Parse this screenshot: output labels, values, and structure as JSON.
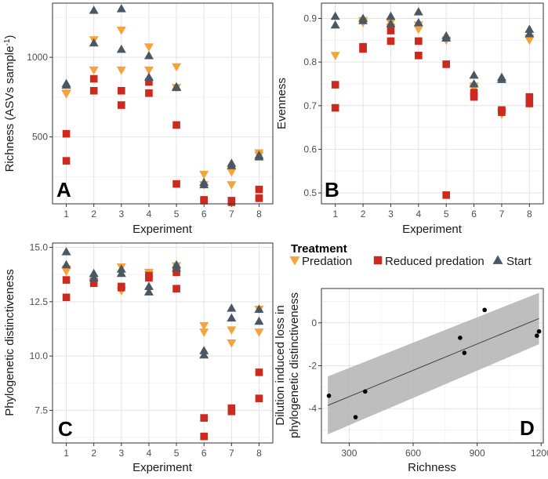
{
  "colors": {
    "predation": "#F5A33A",
    "reduced_predation": "#CC2A1E",
    "start": "#4B5863",
    "ci_band": "#B3B3B3",
    "fit_line": "#404040",
    "point_d": "#000000"
  },
  "legend": {
    "title": "Treatment",
    "items": [
      {
        "key": "predation",
        "label": "Predation",
        "shape": "triangle-down"
      },
      {
        "key": "reduced_predation",
        "label": "Reduced predation",
        "shape": "square"
      },
      {
        "key": "start",
        "label": "Start",
        "shape": "triangle-up"
      }
    ]
  },
  "chart_data": [
    {
      "panel": "A",
      "type": "scatter",
      "xlabel": "Experiment",
      "ylabel": "Richness (ASVs sample",
      "ylabel_superscript": "-1",
      "ylabel_close": ")",
      "xlim": [
        0.5,
        8.5
      ],
      "ylim": [
        80,
        1340
      ],
      "x_ticks": [
        1,
        2,
        3,
        4,
        5,
        6,
        7,
        8
      ],
      "y_ticks": [
        500,
        1000
      ],
      "series": [
        {
          "name": "Predation",
          "key": "predation",
          "points": [
            [
              1,
              775
            ],
            [
              1,
              770
            ],
            [
              2,
              1110
            ],
            [
              2,
              920
            ],
            [
              3,
              1170
            ],
            [
              3,
              920
            ],
            [
              4,
              1065
            ],
            [
              4,
              920
            ],
            [
              5,
              940
            ],
            [
              5,
              810
            ],
            [
              6,
              265
            ],
            [
              6,
              200
            ],
            [
              7,
              280
            ],
            [
              7,
              200
            ],
            [
              8,
              400
            ],
            [
              8,
              385
            ]
          ]
        },
        {
          "name": "Reduced predation",
          "key": "reduced_predation",
          "points": [
            [
              1,
              520
            ],
            [
              1,
              350
            ],
            [
              2,
              865
            ],
            [
              2,
              790
            ],
            [
              3,
              790
            ],
            [
              3,
              700
            ],
            [
              4,
              845
            ],
            [
              4,
              775
            ],
            [
              5,
              575
            ],
            [
              5,
              205
            ],
            [
              6,
              105
            ],
            [
              6,
              100
            ],
            [
              7,
              100
            ],
            [
              7,
              90
            ],
            [
              8,
              170
            ],
            [
              8,
              115
            ]
          ]
        },
        {
          "name": "Start",
          "key": "start",
          "points": [
            [
              1,
              835
            ],
            [
              1,
              825
            ],
            [
              2,
              1295
            ],
            [
              2,
              1090
            ],
            [
              3,
              1305
            ],
            [
              3,
              1050
            ],
            [
              4,
              1010
            ],
            [
              4,
              875
            ],
            [
              5,
              815
            ],
            [
              5,
              810
            ],
            [
              6,
              215
            ],
            [
              6,
              200
            ],
            [
              7,
              335
            ],
            [
              7,
              320
            ],
            [
              8,
              385
            ],
            [
              8,
              375
            ]
          ]
        }
      ]
    },
    {
      "panel": "B",
      "type": "scatter",
      "xlabel": "Experiment",
      "ylabel": "Evenness",
      "xlim": [
        0.5,
        8.5
      ],
      "ylim": [
        0.475,
        0.935
      ],
      "x_ticks": [
        1,
        2,
        3,
        4,
        5,
        6,
        7,
        8
      ],
      "y_ticks": [
        0.5,
        0.6,
        0.7,
        0.8,
        0.9
      ],
      "series": [
        {
          "name": "Predation",
          "key": "predation",
          "points": [
            [
              1,
              0.815
            ],
            [
              2,
              0.895
            ],
            [
              2,
              0.89
            ],
            [
              3,
              0.89
            ],
            [
              3,
              0.88
            ],
            [
              4,
              0.885
            ],
            [
              4,
              0.875
            ],
            [
              5,
              0.85
            ],
            [
              6,
              0.745
            ],
            [
              6,
              0.74
            ],
            [
              7,
              0.685
            ],
            [
              7,
              0.68
            ],
            [
              8,
              0.855
            ],
            [
              8,
              0.85
            ]
          ]
        },
        {
          "name": "Reduced predation",
          "key": "reduced_predation",
          "points": [
            [
              1,
              0.748
            ],
            [
              1,
              0.695
            ],
            [
              2,
              0.835
            ],
            [
              2,
              0.83
            ],
            [
              3,
              0.872
            ],
            [
              3,
              0.848
            ],
            [
              4,
              0.848
            ],
            [
              4,
              0.815
            ],
            [
              5,
              0.795
            ],
            [
              5,
              0.495
            ],
            [
              6,
              0.73
            ],
            [
              6,
              0.72
            ],
            [
              7,
              0.69
            ],
            [
              7,
              0.685
            ],
            [
              8,
              0.72
            ],
            [
              8,
              0.705
            ]
          ]
        },
        {
          "name": "Start",
          "key": "start",
          "points": [
            [
              1,
              0.905
            ],
            [
              1,
              0.885
            ],
            [
              2,
              0.9
            ],
            [
              2,
              0.895
            ],
            [
              3,
              0.905
            ],
            [
              3,
              0.888
            ],
            [
              4,
              0.915
            ],
            [
              4,
              0.89
            ],
            [
              5,
              0.86
            ],
            [
              5,
              0.855
            ],
            [
              6,
              0.77
            ],
            [
              6,
              0.75
            ],
            [
              7,
              0.765
            ],
            [
              7,
              0.76
            ],
            [
              8,
              0.875
            ],
            [
              8,
              0.865
            ]
          ]
        }
      ]
    },
    {
      "panel": "C",
      "type": "scatter",
      "xlabel": "Experiment",
      "ylabel": "Phylogenetic distinctiveness",
      "xlim": [
        0.5,
        8.5
      ],
      "ylim": [
        6.0,
        15.2
      ],
      "x_ticks": [
        1,
        2,
        3,
        4,
        5,
        6,
        7,
        8
      ],
      "y_ticks": [
        7.5,
        10.0,
        12.5,
        15.0
      ],
      "series": [
        {
          "name": "Predation",
          "key": "predation",
          "points": [
            [
              1,
              14.0
            ],
            [
              1,
              13.9
            ],
            [
              2,
              13.5
            ],
            [
              2,
              13.4
            ],
            [
              3,
              14.1
            ],
            [
              3,
              13.0
            ],
            [
              4,
              13.85
            ],
            [
              4,
              13.75
            ],
            [
              5,
              14.15
            ],
            [
              5,
              13.9
            ],
            [
              6,
              11.4
            ],
            [
              6,
              11.1
            ],
            [
              7,
              11.2
            ],
            [
              7,
              10.6
            ],
            [
              8,
              12.15
            ],
            [
              8,
              11.1
            ]
          ]
        },
        {
          "name": "Reduced predation",
          "key": "reduced_predation",
          "points": [
            [
              1,
              13.5
            ],
            [
              1,
              12.7
            ],
            [
              2,
              13.4
            ],
            [
              2,
              13.35
            ],
            [
              3,
              13.2
            ],
            [
              3,
              13.15
            ],
            [
              4,
              13.7
            ],
            [
              4,
              13.6
            ],
            [
              5,
              13.85
            ],
            [
              5,
              13.1
            ],
            [
              6,
              7.15
            ],
            [
              6,
              6.3
            ],
            [
              7,
              7.6
            ],
            [
              7,
              7.45
            ],
            [
              8,
              9.25
            ],
            [
              8,
              8.05
            ]
          ]
        },
        {
          "name": "Start",
          "key": "start",
          "points": [
            [
              1,
              14.8
            ],
            [
              1,
              14.2
            ],
            [
              2,
              13.8
            ],
            [
              2,
              13.6
            ],
            [
              3,
              14.0
            ],
            [
              3,
              13.8
            ],
            [
              4,
              13.2
            ],
            [
              4,
              12.95
            ],
            [
              5,
              14.2
            ],
            [
              5,
              14.05
            ],
            [
              6,
              10.25
            ],
            [
              6,
              10.05
            ],
            [
              7,
              12.2
            ],
            [
              7,
              11.75
            ],
            [
              8,
              12.15
            ],
            [
              8,
              11.6
            ]
          ]
        }
      ]
    },
    {
      "panel": "D",
      "type": "scatter",
      "xlabel": "Richness",
      "ylabel_line1": "Dilution induced loss in",
      "ylabel_line2": "phylogenetic distinctiveness",
      "xlim": [
        170,
        1210
      ],
      "ylim": [
        -5.6,
        1.6
      ],
      "x_ticks": [
        300,
        600,
        900,
        1200
      ],
      "y_ticks": [
        -4,
        -2,
        0
      ],
      "points": [
        [
          205,
          -3.4
        ],
        [
          330,
          -4.4
        ],
        [
          375,
          -3.2
        ],
        [
          820,
          -0.7
        ],
        [
          840,
          -1.4
        ],
        [
          935,
          0.6
        ],
        [
          1180,
          -0.6
        ],
        [
          1190,
          -0.4
        ]
      ],
      "fit": {
        "x": [
          200,
          1190
        ],
        "y": [
          -3.85,
          0.2
        ]
      },
      "ci_band": {
        "x": [
          200,
          1190
        ],
        "lower": [
          -5.2,
          -1.0
        ],
        "upper": [
          -2.5,
          1.4
        ]
      }
    }
  ]
}
